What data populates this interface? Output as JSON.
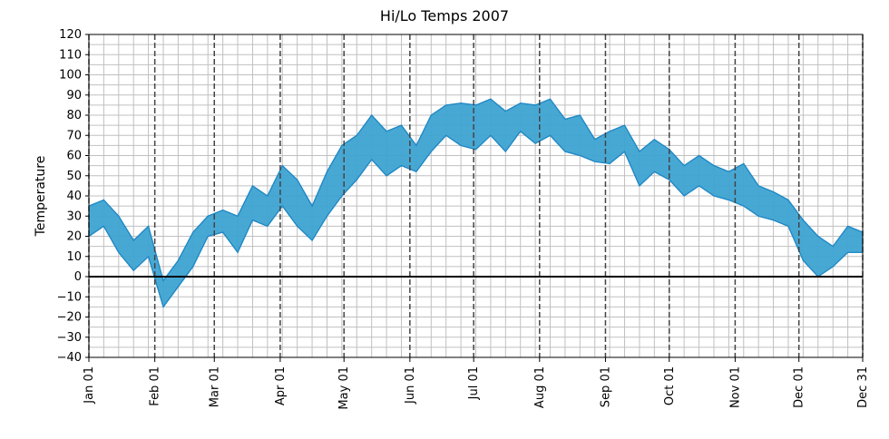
{
  "chart_data": {
    "type": "area",
    "title": "Hi/Lo Temps 2007",
    "xlabel": "",
    "ylabel": "Temperature",
    "ylim": [
      -40,
      120
    ],
    "xlim": [
      "2007-01-01",
      "2007-12-31"
    ],
    "yticks": [
      -40,
      -30,
      -20,
      -10,
      0,
      10,
      20,
      30,
      40,
      50,
      60,
      70,
      80,
      90,
      100,
      110,
      120
    ],
    "xticks": [
      {
        "date": "2007-01-01",
        "label": "Jan 01"
      },
      {
        "date": "2007-02-01",
        "label": "Feb 01"
      },
      {
        "date": "2007-03-01",
        "label": "Mar 01"
      },
      {
        "date": "2007-04-01",
        "label": "Apr 01"
      },
      {
        "date": "2007-05-01",
        "label": "May 01"
      },
      {
        "date": "2007-06-01",
        "label": "Jun 01"
      },
      {
        "date": "2007-07-01",
        "label": "Jul 01"
      },
      {
        "date": "2007-08-01",
        "label": "Aug 01"
      },
      {
        "date": "2007-09-01",
        "label": "Sep 01"
      },
      {
        "date": "2007-10-01",
        "label": "Oct 01"
      },
      {
        "date": "2007-11-01",
        "label": "Nov 01"
      },
      {
        "date": "2007-12-01",
        "label": "Dec 01"
      },
      {
        "date": "2007-12-31",
        "label": "Dec 31"
      }
    ],
    "grid": true,
    "fill_color": "#3ea3d2",
    "edge_color": "#1f88c4",
    "zero_line_color": "#000000",
    "month_line_color": "#444444",
    "grid_color": "#c0c0c0",
    "x": [
      "2007-01-01",
      "2007-01-08",
      "2007-01-15",
      "2007-01-22",
      "2007-01-29",
      "2007-02-05",
      "2007-02-12",
      "2007-02-19",
      "2007-02-26",
      "2007-03-05",
      "2007-03-12",
      "2007-03-19",
      "2007-03-26",
      "2007-04-02",
      "2007-04-09",
      "2007-04-16",
      "2007-04-23",
      "2007-04-30",
      "2007-05-07",
      "2007-05-14",
      "2007-05-21",
      "2007-05-28",
      "2007-06-04",
      "2007-06-11",
      "2007-06-18",
      "2007-06-25",
      "2007-07-02",
      "2007-07-09",
      "2007-07-16",
      "2007-07-23",
      "2007-07-30",
      "2007-08-06",
      "2007-08-13",
      "2007-08-20",
      "2007-08-27",
      "2007-09-03",
      "2007-09-10",
      "2007-09-17",
      "2007-09-24",
      "2007-10-01",
      "2007-10-08",
      "2007-10-15",
      "2007-10-22",
      "2007-10-29",
      "2007-11-05",
      "2007-11-12",
      "2007-11-19",
      "2007-11-26",
      "2007-12-03",
      "2007-12-10",
      "2007-12-17",
      "2007-12-24",
      "2007-12-31"
    ],
    "series": [
      {
        "values": [
          35,
          38,
          30,
          18,
          25,
          -2,
          8,
          22,
          30,
          33,
          30,
          45,
          40,
          55,
          48,
          35,
          52,
          65,
          70,
          80,
          72,
          75,
          65,
          80,
          85,
          86,
          85,
          88,
          82,
          86,
          85,
          88,
          78,
          80,
          68,
          72,
          75,
          62,
          68,
          63,
          55,
          60,
          55,
          52,
          56,
          45,
          42,
          38,
          28,
          20,
          15,
          25,
          22
        ]
      },
      {
        "values": [
          20,
          25,
          12,
          3,
          10,
          -15,
          -5,
          5,
          20,
          22,
          12,
          28,
          25,
          35,
          25,
          18,
          30,
          40,
          48,
          58,
          50,
          55,
          52,
          62,
          70,
          65,
          63,
          70,
          62,
          72,
          66,
          70,
          62,
          60,
          57,
          56,
          62,
          45,
          52,
          48,
          40,
          45,
          40,
          38,
          35,
          30,
          28,
          25,
          8,
          0,
          5,
          12,
          12
        ]
      }
    ]
  }
}
